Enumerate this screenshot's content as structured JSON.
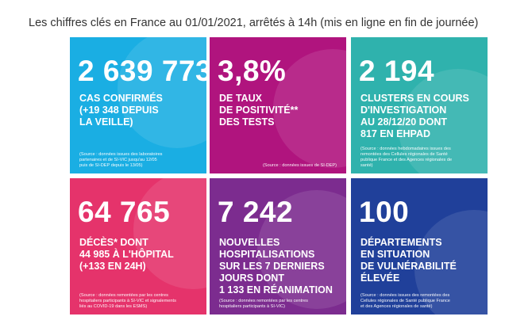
{
  "header": {
    "title": "Les chiffres clés en France au 01/01/2021, arrêtés à 14h (mis en ligne en fin de journée)"
  },
  "tiles": [
    {
      "figure": "2 639 773",
      "label": [
        "CAS CONFIRMÉS",
        "(+19 348 DEPUIS",
        "LA VEILLE)"
      ],
      "source": [
        "(Source : données issues des laboratoires",
        "partenaires et de SI-VIC jusqu'au 12/05",
        "puis de SI-DEP depuis le 13/05)"
      ]
    },
    {
      "figure": "3,8%",
      "label": [
        "DE TAUX",
        "DE POSITIVITÉ**",
        "DES TESTS"
      ],
      "source": [
        "(Source : données issues de SI-DEP)"
      ]
    },
    {
      "figure": "2 194",
      "label": [
        "CLUSTERS EN COURS",
        "D'INVESTIGATION",
        "AU 28/12/20 DONT",
        "817 EN EHPAD"
      ],
      "source": [
        "(Source : données hebdomadaires issues des",
        "remontées des Cellules régionales de Santé",
        "publique France et des Agences régionales de",
        "santé)"
      ]
    },
    {
      "figure": "64 765",
      "label": [
        "DÉCÈS* DONT",
        "44 985 À L'HÔPITAL",
        "(+133 EN 24H)"
      ],
      "source": [
        "(Source : données remontées par les centres",
        "hospitaliers participants à SI-VIC et signalements",
        "liés au COVID-19 dans les ESMS)"
      ]
    },
    {
      "figure": "7 242",
      "label": [
        "NOUVELLES",
        "HOSPITALISATIONS",
        "SUR LES 7 DERNIERS",
        "JOURS DONT",
        "1 133 EN RÉANIMATION"
      ],
      "source": [
        "(Source : données remontées par les centres",
        "hospitaliers participants à SI-VIC)"
      ]
    },
    {
      "figure": "100",
      "label": [
        "DÉPARTEMENTS",
        "EN SITUATION",
        "DE VULNÉRABILITÉ",
        "ÉLEVÉE"
      ],
      "source": [
        "(Source : données issues des remontées des",
        "Cellules régionales de Santé publique France",
        "et des Agences régionales de santé)"
      ]
    }
  ]
}
